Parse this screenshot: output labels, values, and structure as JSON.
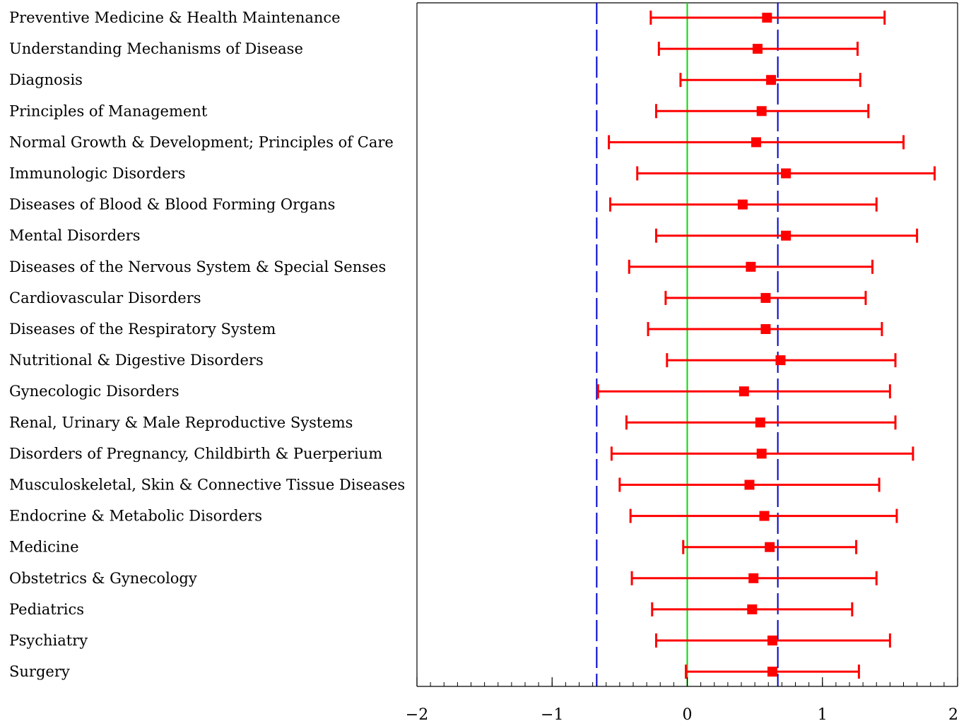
{
  "chart_data": {
    "type": "scatter",
    "subtype": "forest-plot",
    "title": "",
    "xlabel": "",
    "ylabel": "",
    "xlim": [
      -2,
      2
    ],
    "x_ticks": [
      -2,
      -1,
      0,
      1,
      2
    ],
    "x_tick_labels": [
      "−2",
      "−1",
      "0",
      "1",
      "2"
    ],
    "minor_tick_step": 0.1,
    "grid": false,
    "legend": "none",
    "reference_lines": [
      {
        "x": 0,
        "color": "#00dd00",
        "style": "solid"
      },
      {
        "x": -0.67,
        "color": "#0000cc",
        "style": "dashed"
      },
      {
        "x": 0.67,
        "color": "#0000cc",
        "style": "dashed"
      }
    ],
    "colors": {
      "estimate": "#ff0000",
      "interval": "#ff0000",
      "zero_line": "#00dd00",
      "threshold_lines": "#0000cc",
      "frame": "#000000"
    },
    "categories": [
      "Preventive Medicine & Health Maintenance",
      "Understanding Mechanisms of Disease",
      "Diagnosis",
      "Principles of Management",
      "Normal Growth & Development; Principles of Care",
      "Immunologic Disorders",
      "Diseases of Blood & Blood Forming Organs",
      "Mental Disorders",
      "Diseases of the Nervous System & Special Senses",
      "Cardiovascular Disorders",
      "Diseases of the Respiratory System",
      "Nutritional & Digestive Disorders",
      "Gynecologic Disorders",
      "Renal, Urinary & Male Reproductive Systems",
      "Disorders of Pregnancy, Childbirth & Puerperium",
      "Musculoskeletal, Skin & Connective Tissue Diseases",
      "Endocrine & Metabolic Disorders",
      "Medicine",
      "Obstetrics & Gynecology",
      "Pediatrics",
      "Psychiatry",
      "Surgery"
    ],
    "estimates": [
      0.59,
      0.52,
      0.62,
      0.55,
      0.51,
      0.73,
      0.41,
      0.73,
      0.47,
      0.58,
      0.58,
      0.69,
      0.42,
      0.54,
      0.55,
      0.46,
      0.57,
      0.61,
      0.49,
      0.48,
      0.63,
      0.63
    ],
    "lower": [
      -0.27,
      -0.21,
      -0.05,
      -0.23,
      -0.58,
      -0.37,
      -0.57,
      -0.23,
      -0.43,
      -0.16,
      -0.29,
      -0.15,
      -0.66,
      -0.45,
      -0.56,
      -0.5,
      -0.42,
      -0.03,
      -0.41,
      -0.26,
      -0.23,
      -0.01
    ],
    "upper": [
      1.46,
      1.26,
      1.28,
      1.34,
      1.6,
      1.83,
      1.4,
      1.7,
      1.37,
      1.32,
      1.44,
      1.54,
      1.5,
      1.54,
      1.67,
      1.42,
      1.55,
      1.25,
      1.4,
      1.22,
      1.5,
      1.27
    ]
  }
}
